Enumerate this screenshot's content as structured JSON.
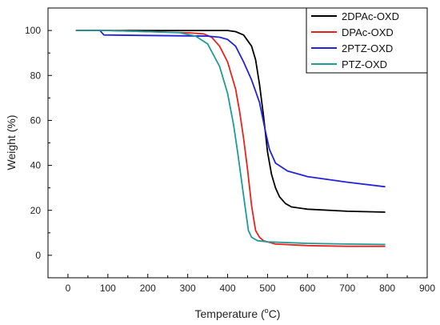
{
  "chart_data": {
    "type": "line",
    "xlabel": "Temperature (°C)",
    "xlabel_parts": {
      "pre": "Temperature (",
      "sup": "o",
      "post": "C)"
    },
    "ylabel": "Weight (%)",
    "xlim": [
      -50,
      900
    ],
    "ylim": [
      -10,
      110
    ],
    "xticks": [
      0,
      100,
      200,
      300,
      400,
      500,
      600,
      700,
      800,
      900
    ],
    "yticks": [
      0,
      20,
      40,
      60,
      80,
      100
    ],
    "grid": false,
    "legend_position": "top-right",
    "series": [
      {
        "name": "2DPAc-OXD",
        "color": "#000000",
        "points": [
          [
            20,
            100
          ],
          [
            100,
            100
          ],
          [
            200,
            100
          ],
          [
            300,
            100
          ],
          [
            400,
            100
          ],
          [
            420,
            99.5
          ],
          [
            440,
            98
          ],
          [
            460,
            93
          ],
          [
            470,
            87
          ],
          [
            480,
            76
          ],
          [
            490,
            62
          ],
          [
            500,
            46
          ],
          [
            510,
            36
          ],
          [
            520,
            30
          ],
          [
            530,
            26
          ],
          [
            545,
            23
          ],
          [
            560,
            21.5
          ],
          [
            600,
            20.5
          ],
          [
            700,
            19.6
          ],
          [
            795,
            19.2
          ]
        ]
      },
      {
        "name": "DPAc-OXD",
        "color": "#e8231c",
        "points": [
          [
            20,
            100
          ],
          [
            100,
            100
          ],
          [
            200,
            99.5
          ],
          [
            300,
            99
          ],
          [
            340,
            98.5
          ],
          [
            360,
            97
          ],
          [
            380,
            93
          ],
          [
            400,
            86
          ],
          [
            420,
            74
          ],
          [
            430,
            64
          ],
          [
            440,
            52
          ],
          [
            450,
            38
          ],
          [
            460,
            22
          ],
          [
            470,
            11
          ],
          [
            480,
            8
          ],
          [
            490,
            6.5
          ],
          [
            520,
            5
          ],
          [
            600,
            4.3
          ],
          [
            700,
            4
          ],
          [
            795,
            4
          ]
        ]
      },
      {
        "name": "2PTZ-OXD",
        "color": "#2222dd",
        "points": [
          [
            20,
            100
          ],
          [
            80,
            100
          ],
          [
            90,
            98
          ],
          [
            200,
            97.8
          ],
          [
            350,
            97.5
          ],
          [
            380,
            97
          ],
          [
            400,
            96
          ],
          [
            420,
            93
          ],
          [
            440,
            86
          ],
          [
            460,
            78
          ],
          [
            480,
            68
          ],
          [
            495,
            55
          ],
          [
            505,
            47
          ],
          [
            520,
            41
          ],
          [
            550,
            37.5
          ],
          [
            600,
            35
          ],
          [
            700,
            32.5
          ],
          [
            795,
            30.5
          ]
        ]
      },
      {
        "name": "PTZ-OXD",
        "color": "#1d9a9a",
        "points": [
          [
            20,
            100
          ],
          [
            100,
            100
          ],
          [
            200,
            99.5
          ],
          [
            280,
            99
          ],
          [
            320,
            97.5
          ],
          [
            350,
            94
          ],
          [
            380,
            84
          ],
          [
            400,
            72
          ],
          [
            415,
            58
          ],
          [
            425,
            46
          ],
          [
            435,
            33
          ],
          [
            445,
            20
          ],
          [
            452,
            11
          ],
          [
            460,
            8
          ],
          [
            475,
            6.5
          ],
          [
            500,
            6
          ],
          [
            600,
            5.3
          ],
          [
            700,
            5
          ],
          [
            795,
            4.8
          ]
        ]
      }
    ]
  }
}
